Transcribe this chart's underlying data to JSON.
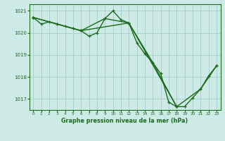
{
  "title": "Graphe pression niveau de la mer (hPa)",
  "bg_color": "#ceeae6",
  "grid_color": "#a8d4ce",
  "line_color": "#1a6b1a",
  "marker_color": "#1a6b1a",
  "xlim": [
    -0.5,
    23.5
  ],
  "ylim": [
    1016.5,
    1021.3
  ],
  "yticks": [
    1017,
    1018,
    1019,
    1020,
    1021
  ],
  "xticks": [
    0,
    1,
    2,
    3,
    4,
    5,
    6,
    7,
    8,
    9,
    10,
    11,
    12,
    13,
    14,
    15,
    16,
    17,
    18,
    19,
    20,
    21,
    22,
    23
  ],
  "series1": {
    "x": [
      0,
      1,
      2,
      3,
      4,
      5,
      6,
      7,
      8,
      9,
      10,
      11,
      12,
      13,
      14,
      15,
      16,
      17,
      18,
      19,
      20,
      21,
      22,
      23
    ],
    "y": [
      1020.7,
      1020.4,
      1020.5,
      1020.4,
      1020.3,
      1020.2,
      1020.1,
      1019.85,
      1020.0,
      1020.65,
      1021.0,
      1020.6,
      1020.45,
      1019.55,
      1019.05,
      1018.65,
      1018.15,
      1016.85,
      1016.65,
      1016.65,
      1017.05,
      1017.45,
      1018.05,
      1018.5
    ]
  },
  "series2": {
    "x": [
      0,
      3,
      6,
      9,
      12,
      15,
      18,
      21,
      23
    ],
    "y": [
      1020.7,
      1020.4,
      1020.1,
      1020.65,
      1020.45,
      1018.65,
      1016.65,
      1017.45,
      1018.5
    ]
  },
  "series3": {
    "x": [
      0,
      6,
      12,
      18
    ],
    "y": [
      1020.7,
      1020.1,
      1020.45,
      1016.65
    ]
  }
}
